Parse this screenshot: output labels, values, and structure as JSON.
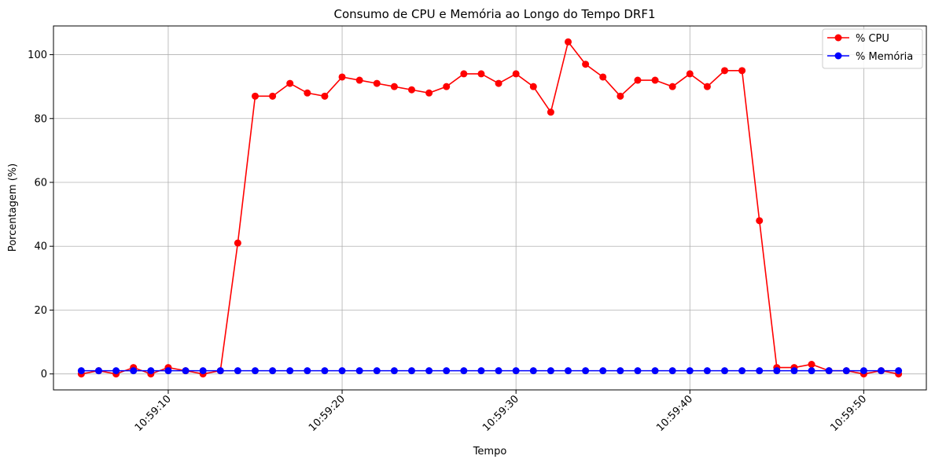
{
  "chart_data": {
    "type": "line",
    "title": "Consumo de CPU e Memória ao Longo do Tempo DRF1",
    "xlabel": "Tempo",
    "ylabel": "Porcentagem (%)",
    "x_tick_labels": [
      "10:59:10",
      "10:59:20",
      "10:59:30",
      "10:59:40",
      "10:59:50"
    ],
    "y_tick_labels": [
      "0",
      "20",
      "40",
      "60",
      "80",
      "100"
    ],
    "ylim": [
      -5,
      109
    ],
    "xlim_seconds": [
      3.4,
      53.6
    ],
    "grid": true,
    "legend_position": "top-right",
    "x_seconds": [
      5,
      6,
      7,
      8,
      9,
      10,
      11,
      12,
      13,
      14,
      15,
      16,
      17,
      18,
      19,
      20,
      21,
      22,
      23,
      24,
      25,
      26,
      27,
      28,
      29,
      30,
      31,
      32,
      33,
      34,
      35,
      36,
      37,
      38,
      39,
      40,
      41,
      42,
      43,
      44,
      45,
      46,
      47,
      48,
      49,
      50,
      51,
      52
    ],
    "series": [
      {
        "name": "% CPU",
        "color": "#ff0000",
        "values": [
          0,
          1,
          0,
          2,
          0,
          2,
          1,
          0,
          1,
          41,
          87,
          87,
          91,
          88,
          87,
          93,
          92,
          91,
          90,
          89,
          88,
          90,
          94,
          94,
          91,
          94,
          90,
          82,
          104,
          97,
          93,
          87,
          92,
          92,
          90,
          94,
          90,
          95,
          95,
          48,
          2,
          2,
          3,
          1,
          1,
          0,
          1,
          0
        ]
      },
      {
        "name": "% Memória",
        "color": "#0000ff",
        "values": [
          1,
          1,
          1,
          1,
          1,
          1,
          1,
          1,
          1,
          1,
          1,
          1,
          1,
          1,
          1,
          1,
          1,
          1,
          1,
          1,
          1,
          1,
          1,
          1,
          1,
          1,
          1,
          1,
          1,
          1,
          1,
          1,
          1,
          1,
          1,
          1,
          1,
          1,
          1,
          1,
          1,
          1,
          1,
          1,
          1,
          1,
          1,
          1
        ]
      }
    ]
  }
}
